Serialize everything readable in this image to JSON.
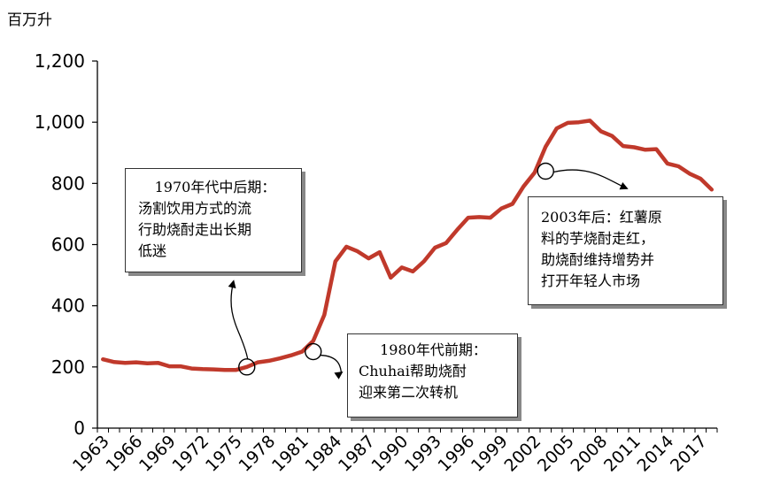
{
  "unit_label": "百万升",
  "annotations": {
    "a1970": [
      "1970年代中后期：",
      "汤割饮用方式的流",
      "行助烧酎走出长期",
      "低迷"
    ],
    "a1980": [
      "1980年代前期：",
      "Chuhai帮助烧酎",
      "迎来第二次转机"
    ],
    "a2003": [
      "2003年后：红薯原",
      "料的芋烧酎走红，",
      "助烧酎维持增势并",
      "打开年轻人市场"
    ]
  },
  "chart_data": {
    "type": "line",
    "title": "",
    "xlabel": "",
    "ylabel": "百万升",
    "ylim": [
      0,
      1200
    ],
    "xlim": [
      1963,
      2018
    ],
    "y_ticks": [
      "0",
      "200",
      "400",
      "600",
      "800",
      "1,000",
      "1,200"
    ],
    "x_ticks": [
      "1963",
      "1966",
      "1969",
      "1972",
      "1975",
      "1978",
      "1981",
      "1984",
      "1987",
      "1990",
      "1993",
      "1996",
      "1999",
      "2002",
      "2005",
      "2008",
      "2011",
      "2014",
      "2017"
    ],
    "grid": false,
    "legend": "none",
    "series_color": "#c0392b",
    "series": [
      {
        "name": "",
        "x": [
          1963,
          1964,
          1965,
          1966,
          1967,
          1968,
          1969,
          1970,
          1971,
          1972,
          1973,
          1974,
          1975,
          1976,
          1977,
          1978,
          1979,
          1980,
          1981,
          1982,
          1983,
          1984,
          1985,
          1986,
          1987,
          1988,
          1989,
          1990,
          1991,
          1992,
          1993,
          1994,
          1995,
          1996,
          1997,
          1998,
          1999,
          2000,
          2001,
          2002,
          2003,
          2004,
          2005,
          2006,
          2007,
          2008,
          2009,
          2010,
          2011,
          2012,
          2013,
          2014,
          2015,
          2016,
          2017,
          2018
        ],
        "values": [
          225,
          216,
          213,
          215,
          212,
          213,
          202,
          202,
          195,
          193,
          192,
          190,
          190,
          200,
          215,
          220,
          228,
          238,
          250,
          285,
          370,
          545,
          593,
          578,
          555,
          575,
          492,
          525,
          512,
          545,
          590,
          605,
          648,
          688,
          690,
          688,
          718,
          733,
          790,
          835,
          920,
          980,
          998,
          1000,
          1005,
          970,
          955,
          922,
          918,
          910,
          912,
          865,
          856,
          832,
          815,
          780
        ]
      }
    ],
    "markers": [
      {
        "x": 1976,
        "y": 200
      },
      {
        "x": 1982,
        "y": 250
      },
      {
        "x": 2003,
        "y": 840
      }
    ]
  }
}
